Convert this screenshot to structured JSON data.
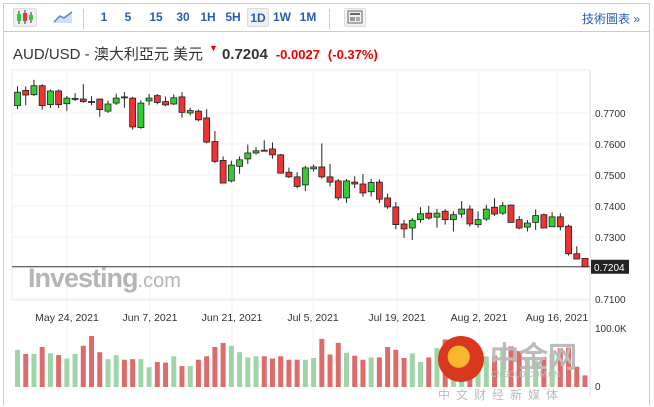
{
  "toolbar": {
    "intervals": [
      "1",
      "5",
      "15",
      "30",
      "1H",
      "5H",
      "1D",
      "1W",
      "1M"
    ],
    "active": "1D",
    "tech_link": "技術圖表 »"
  },
  "header": {
    "symbol": "AUD/USD - 澳大利亞元 美元",
    "price": "0.7204",
    "change": "-0.0027",
    "change_pct": "(-0.37%)"
  },
  "watermark": {
    "brand": "Investing",
    "suffix": ".com",
    "cn_logo": "中金网",
    "cn_domain": "CNGOLD.COM.CN",
    "cn_slogan": "中文财经新媒体"
  },
  "colors": {
    "up": "#33cc33",
    "down": "#ee3333",
    "vol_up": "#9fd4a8",
    "vol_down": "#dd6b6b"
  },
  "chart_data": {
    "type": "candlestick",
    "x_labels": [
      "May 24, 2021",
      "Jun 7, 2021",
      "Jun 21, 2021",
      "Jul 5, 2021",
      "Jul 19, 2021",
      "Aug 2, 2021",
      "Aug 16, 2021"
    ],
    "y_ticks": [
      "0.7700",
      "0.7600",
      "0.7500",
      "0.7400",
      "0.7300",
      "0.7100"
    ],
    "last_price_label": "0.7204",
    "ylim": [
      0.7085,
      0.78
    ],
    "volume_ticks": [
      "100.0K",
      "0"
    ],
    "candles": [
      [
        0.7724,
        0.7767,
        0.7786,
        0.7713
      ],
      [
        0.7773,
        0.7758,
        0.7786,
        0.7725
      ],
      [
        0.7759,
        0.7788,
        0.7807,
        0.7755
      ],
      [
        0.7788,
        0.7724,
        0.7793,
        0.7711
      ],
      [
        0.7727,
        0.7771,
        0.7776,
        0.7716
      ],
      [
        0.7771,
        0.7727,
        0.7776,
        0.7716
      ],
      [
        0.773,
        0.7748,
        0.7755,
        0.7707
      ],
      [
        0.7746,
        0.7747,
        0.7764,
        0.7738
      ],
      [
        0.7745,
        0.7737,
        0.7793,
        0.7733
      ],
      [
        0.7737,
        0.7736,
        0.7754,
        0.7725
      ],
      [
        0.7745,
        0.7711,
        0.7747,
        0.7688
      ],
      [
        0.7706,
        0.7729,
        0.774,
        0.77
      ],
      [
        0.7732,
        0.7748,
        0.7762,
        0.7726
      ],
      [
        0.7752,
        0.7751,
        0.7768,
        0.7717
      ],
      [
        0.7748,
        0.7655,
        0.7752,
        0.7646
      ],
      [
        0.7653,
        0.7732,
        0.7741,
        0.7649
      ],
      [
        0.7739,
        0.7748,
        0.7761,
        0.7725
      ],
      [
        0.7756,
        0.7734,
        0.7761,
        0.7728
      ],
      [
        0.7737,
        0.7726,
        0.7753,
        0.7722
      ],
      [
        0.7729,
        0.7749,
        0.776,
        0.7726
      ],
      [
        0.7752,
        0.7702,
        0.7767,
        0.7685
      ],
      [
        0.77,
        0.7708,
        0.7717,
        0.7692
      ],
      [
        0.7706,
        0.7678,
        0.7711,
        0.7673
      ],
      [
        0.7684,
        0.7606,
        0.7712,
        0.7602
      ],
      [
        0.7608,
        0.7544,
        0.7642,
        0.7538
      ],
      [
        0.7547,
        0.7474,
        0.756,
        0.7474
      ],
      [
        0.7481,
        0.7532,
        0.7546,
        0.7476
      ],
      [
        0.7528,
        0.7549,
        0.756,
        0.7504
      ],
      [
        0.7552,
        0.7571,
        0.7598,
        0.7536
      ],
      [
        0.7571,
        0.7578,
        0.759,
        0.7566
      ],
      [
        0.758,
        0.7579,
        0.7612,
        0.7577
      ],
      [
        0.7584,
        0.7565,
        0.7605,
        0.7553
      ],
      [
        0.7565,
        0.7506,
        0.7568,
        0.7506
      ],
      [
        0.7509,
        0.7494,
        0.7524,
        0.749
      ],
      [
        0.7494,
        0.7463,
        0.7509,
        0.7457
      ],
      [
        0.7468,
        0.7523,
        0.753,
        0.7448
      ],
      [
        0.752,
        0.7526,
        0.7534,
        0.7511
      ],
      [
        0.7526,
        0.7494,
        0.7602,
        0.7488
      ],
      [
        0.7494,
        0.7477,
        0.7536,
        0.7463
      ],
      [
        0.7481,
        0.7426,
        0.7487,
        0.7418
      ],
      [
        0.7426,
        0.7481,
        0.7487,
        0.741
      ],
      [
        0.7477,
        0.7471,
        0.7496,
        0.7458
      ],
      [
        0.7471,
        0.7442,
        0.7503,
        0.743
      ],
      [
        0.7446,
        0.7476,
        0.7487,
        0.7431
      ],
      [
        0.7477,
        0.7422,
        0.7486,
        0.7409
      ],
      [
        0.7426,
        0.7397,
        0.744,
        0.7391
      ],
      [
        0.7397,
        0.734,
        0.7413,
        0.7325
      ],
      [
        0.7342,
        0.7326,
        0.7355,
        0.7297
      ],
      [
        0.7329,
        0.7354,
        0.7361,
        0.729
      ],
      [
        0.7356,
        0.7375,
        0.7396,
        0.7346
      ],
      [
        0.7377,
        0.7361,
        0.74,
        0.7356
      ],
      [
        0.7364,
        0.7377,
        0.7391,
        0.733
      ],
      [
        0.7383,
        0.7356,
        0.739,
        0.734
      ],
      [
        0.7356,
        0.7372,
        0.7383,
        0.7318
      ],
      [
        0.7374,
        0.739,
        0.7416,
        0.7362
      ],
      [
        0.739,
        0.7342,
        0.7402,
        0.7334
      ],
      [
        0.734,
        0.7356,
        0.7383,
        0.733
      ],
      [
        0.7358,
        0.739,
        0.7404,
        0.7352
      ],
      [
        0.7396,
        0.7374,
        0.7425,
        0.7368
      ],
      [
        0.7377,
        0.7401,
        0.7413,
        0.7371
      ],
      [
        0.7403,
        0.7347,
        0.7405,
        0.7346
      ],
      [
        0.7356,
        0.7329,
        0.7368,
        0.7325
      ],
      [
        0.7332,
        0.7345,
        0.7355,
        0.7318
      ],
      [
        0.7347,
        0.7369,
        0.7389,
        0.7323
      ],
      [
        0.7372,
        0.7329,
        0.7376,
        0.7329
      ],
      [
        0.7333,
        0.7365,
        0.738,
        0.7333
      ],
      [
        0.7365,
        0.7333,
        0.7377,
        0.7321
      ],
      [
        0.7335,
        0.7246,
        0.734,
        0.724
      ],
      [
        0.7246,
        0.7229,
        0.727,
        0.7229
      ],
      [
        0.7231,
        0.7204,
        0.7231,
        0.7202
      ]
    ],
    "volumes_k": [
      64,
      57,
      57,
      69,
      58,
      55,
      49,
      57,
      71,
      88,
      60,
      48,
      55,
      47,
      48,
      48,
      34,
      43,
      42,
      53,
      36,
      36,
      47,
      53,
      69,
      76,
      71,
      60,
      51,
      53,
      53,
      49,
      53,
      47,
      47,
      47,
      50,
      83,
      56,
      76,
      59,
      54,
      47,
      51,
      51,
      69,
      64,
      50,
      58,
      43,
      51,
      67,
      82,
      59,
      59,
      51,
      57,
      53,
      54,
      63,
      70,
      62,
      51,
      46,
      52,
      59,
      67,
      68,
      35,
      20
    ]
  }
}
